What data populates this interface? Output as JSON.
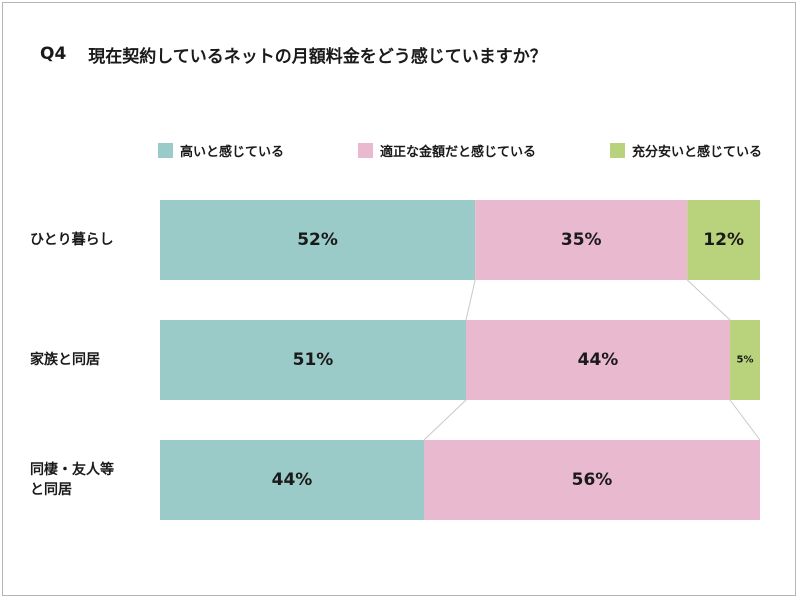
{
  "title": {
    "qno": "Q4",
    "text": "現在契約しているネットの月額料金をどう感じていますか？"
  },
  "colors": {
    "high": "#9bcbc8",
    "fair": "#e8b9cf",
    "cheap": "#b9d27c"
  },
  "chart_data": {
    "type": "bar",
    "orientation": "horizontal-stacked-100",
    "legend_position": "top",
    "categories": [
      "ひとり暮らし",
      "家族と同居",
      "同棲・友人等と同居"
    ],
    "category_lines": [
      [
        "ひとり暮らし"
      ],
      [
        "家族と同居"
      ],
      [
        "同棲・友人等",
        "と同居"
      ]
    ],
    "series": [
      {
        "name": "高いと感じている",
        "values": [
          52,
          51,
          44
        ],
        "labels": [
          "52%",
          "51%",
          "44%"
        ]
      },
      {
        "name": "適正な金額だと感じている",
        "values": [
          35,
          44,
          56
        ],
        "labels": [
          "35%",
          "44%",
          "56%"
        ]
      },
      {
        "name": "充分安いと感じている",
        "values": [
          12,
          5,
          0
        ],
        "labels": [
          "12%",
          "5%",
          ""
        ]
      }
    ]
  }
}
